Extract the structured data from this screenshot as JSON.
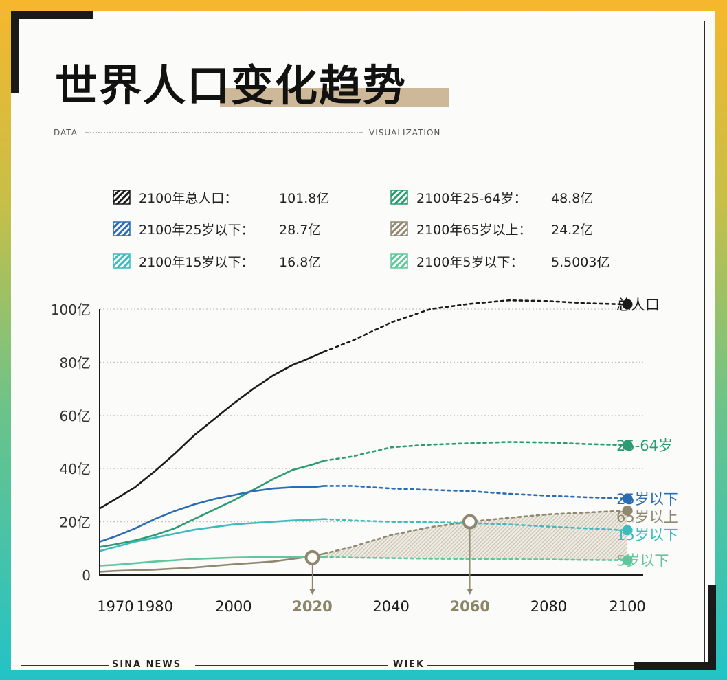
{
  "header": {
    "title": "世界人口变化趋势",
    "subtitle_left": "DATA",
    "subtitle_right": "VISUALIZATION"
  },
  "legend": [
    {
      "label": "2100年总人口：",
      "value": "101.8亿",
      "color": "#1b1b1b"
    },
    {
      "label": "2100年25岁以下：",
      "value": "28.7亿",
      "color": "#2a6db5"
    },
    {
      "label": "2100年15岁以下：",
      "value": "16.8亿",
      "color": "#3cbcbc"
    },
    {
      "label": "2100年25-64岁：",
      "value": "48.8亿",
      "color": "#2c9a74"
    },
    {
      "label": "2100年65岁以上：",
      "value": "24.2亿",
      "color": "#8f8770"
    },
    {
      "label": "2100年5岁以下：",
      "value": "5.5003亿",
      "color": "#5fc79c"
    }
  ],
  "footer": {
    "left": "SINA NEWS",
    "right": "WIEK"
  },
  "chart_data": {
    "type": "line",
    "title": "世界人口变化趋势",
    "xlabel": "",
    "ylabel": "",
    "xlim": [
      1966,
      2104
    ],
    "ylim": [
      0,
      100
    ],
    "x_ticks": [
      1970,
      1980,
      2000,
      2020,
      2040,
      2060,
      2080,
      2100
    ],
    "highlight_ticks": [
      2020,
      2060
    ],
    "y_ticks": [
      0,
      20,
      40,
      60,
      80,
      100
    ],
    "y_tick_labels": [
      "0",
      "20亿",
      "40亿",
      "60亿",
      "80亿",
      "100亿"
    ],
    "solid_until": 2023,
    "series": [
      {
        "name": "总人口",
        "end_label": "总人口",
        "color": "#1b1b1b",
        "x": [
          1966,
          1970,
          1975,
          1980,
          1985,
          1990,
          1995,
          2000,
          2005,
          2010,
          2015,
          2020,
          2023,
          2030,
          2040,
          2050,
          2060,
          2070,
          2080,
          2090,
          2100
        ],
        "y": [
          25,
          28.5,
          33,
          39,
          45.5,
          52.5,
          58.5,
          64.5,
          70,
          75,
          79,
          82,
          84,
          88,
          95,
          100,
          102,
          103.3,
          103,
          102.2,
          101.8
        ]
      },
      {
        "name": "25-64岁",
        "end_label": "25-64岁",
        "color": "#2c9a74",
        "x": [
          1966,
          1970,
          1975,
          1980,
          1985,
          1990,
          1995,
          2000,
          2005,
          2010,
          2015,
          2020,
          2023,
          2030,
          2040,
          2050,
          2060,
          2070,
          2080,
          2090,
          2100
        ],
        "y": [
          10.5,
          11.5,
          13,
          15,
          17.5,
          21,
          24.5,
          28,
          32,
          36,
          39.5,
          41.5,
          43,
          44.5,
          48,
          49,
          49.5,
          50,
          49.8,
          49.2,
          48.8
        ]
      },
      {
        "name": "25岁以下",
        "end_label": "25岁以下",
        "color": "#2a6db5",
        "x": [
          1966,
          1970,
          1975,
          1980,
          1985,
          1990,
          1995,
          2000,
          2005,
          2010,
          2015,
          2020,
          2023,
          2030,
          2040,
          2050,
          2060,
          2070,
          2080,
          2090,
          2100
        ],
        "y": [
          12.5,
          14.5,
          17.5,
          21,
          24,
          26.5,
          28.5,
          30,
          31.5,
          32.5,
          33,
          33,
          33.5,
          33.5,
          32.5,
          32,
          31.5,
          30.5,
          29.8,
          29.2,
          28.7
        ]
      },
      {
        "name": "65岁以上",
        "end_label": "65岁以上",
        "color": "#8f8770",
        "x": [
          1966,
          1970,
          1980,
          1990,
          2000,
          2010,
          2020,
          2023,
          2030,
          2040,
          2050,
          2060,
          2070,
          2080,
          2090,
          2100
        ],
        "y": [
          1.2,
          1.5,
          2,
          2.8,
          4,
          5,
          7,
          8,
          10.5,
          15,
          18,
          20,
          21.5,
          22.8,
          23.5,
          24.2
        ]
      },
      {
        "name": "15岁以下",
        "end_label": "15岁以下",
        "color": "#3cbcbc",
        "x": [
          1966,
          1970,
          1975,
          1980,
          1985,
          1990,
          1995,
          2000,
          2005,
          2010,
          2015,
          2020,
          2023,
          2030,
          2040,
          2050,
          2060,
          2070,
          2080,
          2090,
          2100
        ],
        "y": [
          9,
          10.5,
          12.5,
          14,
          15.5,
          17,
          18,
          19,
          19.5,
          20,
          20.5,
          20.8,
          21,
          20.5,
          20,
          19.8,
          19.5,
          19,
          18.2,
          17.5,
          16.8
        ]
      },
      {
        "name": "5岁以下",
        "end_label": "5岁以下",
        "color": "#5fc79c",
        "x": [
          1966,
          1970,
          1980,
          1990,
          2000,
          2010,
          2020,
          2023,
          2030,
          2040,
          2050,
          2060,
          2070,
          2080,
          2090,
          2100
        ],
        "y": [
          3.5,
          3.8,
          5,
          6,
          6.5,
          6.8,
          6.8,
          6.7,
          6.5,
          6.3,
          6.1,
          6,
          5.9,
          5.8,
          5.6,
          5.5
        ]
      }
    ],
    "markers": [
      {
        "x": 2020,
        "y": 6.5,
        "color": "#8f8770"
      },
      {
        "x": 2060,
        "y": 20,
        "color": "#8f8770"
      }
    ],
    "shaded_area": {
      "between": [
        "65岁以上",
        "5岁以下"
      ],
      "from_x": 2023,
      "color": "#b9b3a0"
    }
  }
}
